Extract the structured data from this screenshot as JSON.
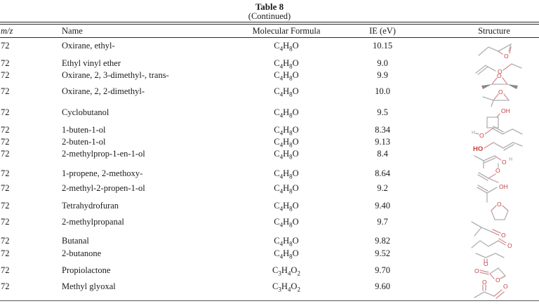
{
  "page": {
    "title": "Table 8",
    "subtitle": "(Continued)"
  },
  "columns": {
    "mz": "m/z",
    "name": "Name",
    "formula": "Molecular Formula",
    "ie": "IE (eV)",
    "structure": "Structure"
  },
  "rows": [
    {
      "mz": "72",
      "name": "Oxirane, ethyl-",
      "formula": "C4H8O",
      "ie": "10.15",
      "structure": "ethyloxirane"
    },
    {
      "mz": "72",
      "name": "Ethyl vinyl ether",
      "formula": "C4H8O",
      "ie": "9.0",
      "structure": "ethyl-vinyl-ether"
    },
    {
      "mz": "72",
      "name": "Oxirane, 2, 3-dimethyl-, trans-",
      "formula": "C4H8O",
      "ie": "9.9",
      "structure": "trans-2,3-dimethyloxirane"
    },
    {
      "mz": "72",
      "name": "Oxirane, 2, 2-dimethyl-",
      "formula": "C4H8O",
      "ie": "10.0",
      "structure": "2,2-dimethyloxirane"
    },
    {
      "mz": "72",
      "name": "Cyclobutanol",
      "formula": "C4H8O",
      "ie": "9.5",
      "structure": "cyclobutanol"
    },
    {
      "mz": "72",
      "name": "1-buten-1-ol",
      "formula": "C4H8O",
      "ie": "8.34",
      "structure": "1-buten-1-ol"
    },
    {
      "mz": "72",
      "name": "2-buten-1-ol",
      "formula": "C4H8O",
      "ie": "9.13",
      "structure": "2-buten-1-ol"
    },
    {
      "mz": "72",
      "name": "2-methylprop-1-en-1-ol",
      "formula": "C4H8O",
      "ie": "8.4",
      "structure": "2-methylprop-1-en-1-ol"
    },
    {
      "mz": "72",
      "name": "1-propene, 2-methoxy-",
      "formula": "C4H8O",
      "ie": "8.64",
      "structure": "2-methoxy-1-propene"
    },
    {
      "mz": "72",
      "name": "2-methyl-2-propen-1-ol",
      "formula": "C4H8O",
      "ie": "9.2",
      "structure": "2-methyl-2-propen-1-ol"
    },
    {
      "mz": "72",
      "name": "Tetrahydrofuran",
      "formula": "C4H8O",
      "ie": "9.40",
      "structure": "tetrahydrofuran"
    },
    {
      "mz": "72",
      "name": "2-methylpropanal",
      "formula": "C4H8O",
      "ie": "9.7",
      "structure": "2-methylpropanal"
    },
    {
      "mz": "72",
      "name": "Butanal",
      "formula": "C4H8O",
      "ie": "9.82",
      "structure": "butanal"
    },
    {
      "mz": "72",
      "name": "2-butanone",
      "formula": "C4H8O",
      "ie": "9.52",
      "structure": "2-butanone"
    },
    {
      "mz": "72",
      "name": "Propiolactone",
      "formula": "C3H4O2",
      "ie": "9.70",
      "structure": "propiolactone"
    },
    {
      "mz": "72",
      "name": "Methyl glyoxal",
      "formula": "C3H4O2",
      "ie": "9.60",
      "structure": "methyl-glyoxal"
    }
  ],
  "colors": {
    "bond": "#b0b0b0",
    "oxygen": "#c04040",
    "rule": "#2b2b2b"
  }
}
